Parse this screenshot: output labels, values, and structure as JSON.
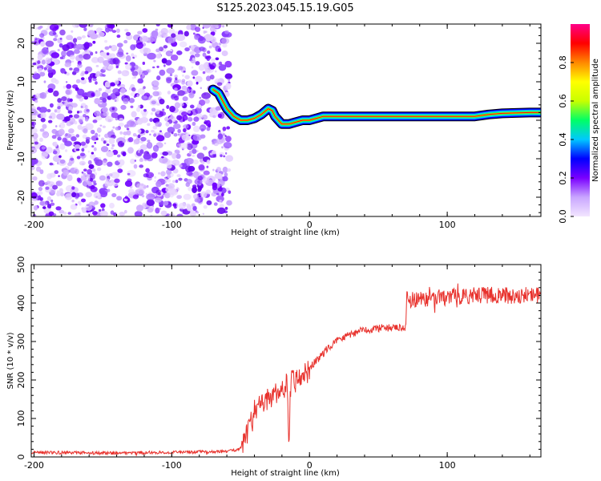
{
  "title": "S125.2023.045.15.19.G05",
  "chart_data": [
    {
      "type": "heatmap",
      "xlabel": "Height of straight line (km)",
      "ylabel": "Frequency (Hz)",
      "xlim": [
        -202,
        168
      ],
      "ylim": [
        -25,
        25
      ],
      "xticks": [
        -200,
        -100,
        0,
        100
      ],
      "yticks": [
        -20,
        -10,
        0,
        10,
        20
      ],
      "noise_region_x": [
        -202,
        -58
      ],
      "ridge": {
        "x": [
          -70,
          -66,
          -60,
          -55,
          -50,
          -45,
          -40,
          -35,
          -30,
          -27,
          -25,
          -20,
          -15,
          -10,
          -5,
          0,
          5,
          10,
          20,
          40,
          60,
          80,
          100,
          120,
          130,
          140,
          160,
          168
        ],
        "freq": [
          8,
          7,
          3,
          1,
          0,
          0,
          0.5,
          1.5,
          3,
          2.5,
          1,
          -1,
          -1,
          -0.5,
          0,
          0,
          0.5,
          1,
          1,
          1,
          1,
          1,
          1,
          1,
          1.5,
          1.8,
          2,
          2
        ]
      },
      "colorbar": {
        "label": "Normalized spectral amplitude",
        "ticks": [
          "0.0",
          "0.2",
          "0.4",
          "0.6",
          "0.8"
        ],
        "range": [
          0,
          1
        ],
        "colors": [
          "#f2e6ff",
          "#c9a6ff",
          "#7a00ff",
          "#0000ff",
          "#00c8ff",
          "#00ff66",
          "#c8ff00",
          "#ffff00",
          "#ff8800",
          "#ff0000",
          "#ff0088"
        ]
      }
    },
    {
      "type": "line",
      "xlabel": "Height of straight line (km)",
      "ylabel": "SNR (10 * v/v)",
      "xlim": [
        -202,
        168
      ],
      "ylim": [
        0,
        500
      ],
      "xticks": [
        -200,
        -100,
        0,
        100
      ],
      "yticks": [
        0,
        100,
        200,
        300,
        400,
        500
      ],
      "color": "#e8322d",
      "series": [
        {
          "name": "SNR",
          "x": [
            -202,
            -150,
            -100,
            -60,
            -50,
            -45,
            -40,
            -35,
            -30,
            -25,
            -20,
            -16,
            -15,
            -14,
            -10,
            -5,
            0,
            10,
            20,
            30,
            40,
            50,
            60,
            70,
            70.5,
            80,
            100,
            120,
            140,
            160,
            168
          ],
          "values": [
            12,
            10,
            12,
            14,
            22,
            60,
            120,
            140,
            150,
            160,
            170,
            200,
            20,
            190,
            200,
            215,
            230,
            270,
            305,
            320,
            330,
            335,
            335,
            335,
            410,
            410,
            415,
            420,
            420,
            420,
            420
          ]
        }
      ]
    }
  ]
}
